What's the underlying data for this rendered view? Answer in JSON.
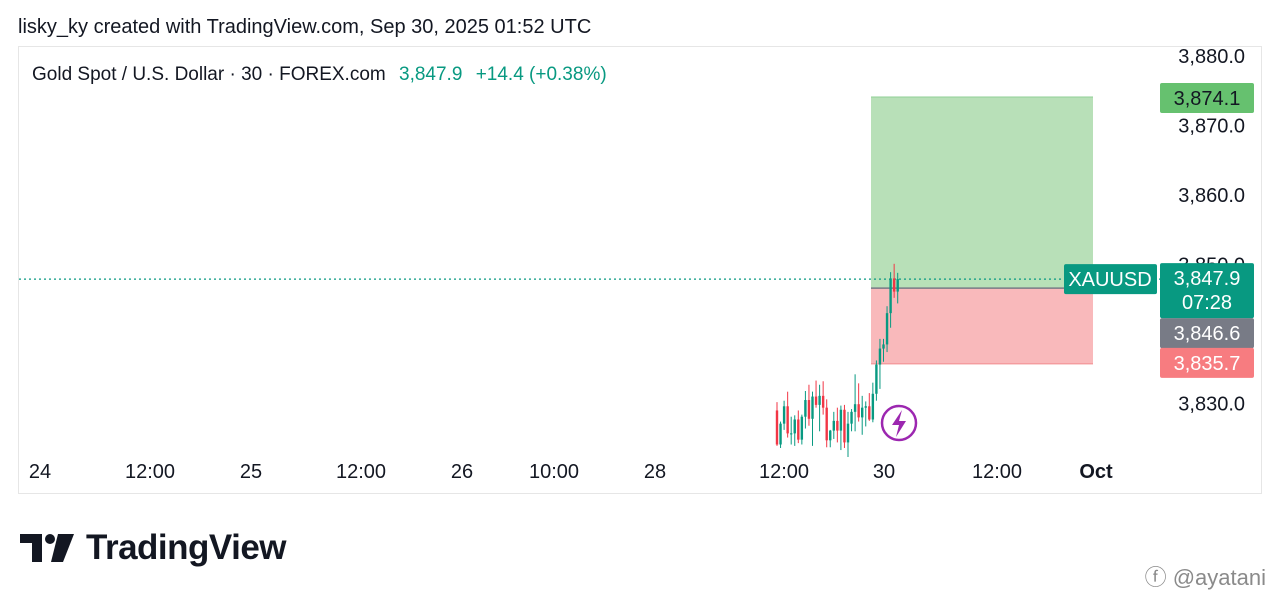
{
  "header": {
    "credit": "lisky_ky created with TradingView.com, Sep 30, 2025 01:52 UTC"
  },
  "legend": {
    "symbol_desc": "Gold Spot / U.S. Dollar · 30 · FOREX.com",
    "price": "3,847.9",
    "change": "+14.4 (+0.38%)"
  },
  "colors": {
    "up": "#089981",
    "down": "#f23645",
    "profit_zone": "#b8e0b8",
    "loss_zone": "#f9b9bb",
    "entry_label": "#787b86",
    "target_label": "#66c16f",
    "stop_label": "#f77c80",
    "lightning": "#9c27b0"
  },
  "logo": {
    "text": "TradingView"
  },
  "watermark": {
    "text": "@ayatani"
  },
  "chart_data": {
    "type": "candlestick",
    "symbol": "XAUUSD",
    "ylim": [
      3823,
      3882
    ],
    "y_ticks": [
      "3,880.0",
      "3,870.0",
      "3,860.0",
      "3,850.0",
      "3,830.0"
    ],
    "y_tick_values": [
      3880,
      3870,
      3860,
      3850,
      3830
    ],
    "x_ticks": [
      "24",
      "12:00",
      "25",
      "12:00",
      "26",
      "10:00",
      "28",
      "12:00",
      "30",
      "12:00",
      "Oct"
    ],
    "price_label": {
      "symbol": "XAUUSD",
      "price": "3,847.9",
      "countdown": "07:28",
      "value": 3847.9
    },
    "position": {
      "type": "long",
      "entry": 3846.6,
      "entry_label": "3,846.6",
      "target": 3874.1,
      "target_label": "3,874.1",
      "stop": 3835.7,
      "stop_label": "3,835.7"
    },
    "candles": [
      [
        3829.0,
        3830.2,
        3823.9,
        3824.1
      ],
      [
        3824.1,
        3827.4,
        3823.6,
        3827.1
      ],
      [
        3827.1,
        3830.4,
        3826.2,
        3829.6
      ],
      [
        3829.6,
        3831.7,
        3825.1,
        3825.7
      ],
      [
        3825.7,
        3828.1,
        3824.1,
        3825.7
      ],
      [
        3825.7,
        3828.3,
        3823.9,
        3827.7
      ],
      [
        3827.7,
        3829.0,
        3824.3,
        3824.8
      ],
      [
        3824.8,
        3828.4,
        3824.1,
        3828.1
      ],
      [
        3828.1,
        3831.8,
        3826.4,
        3830.5
      ],
      [
        3830.5,
        3832.7,
        3826.8,
        3827.8
      ],
      [
        3827.8,
        3831.7,
        3823.9,
        3831.0
      ],
      [
        3831.0,
        3833.3,
        3829.4,
        3829.8
      ],
      [
        3829.8,
        3832.7,
        3826.0,
        3831.1
      ],
      [
        3831.1,
        3833.2,
        3828.4,
        3829.4
      ],
      [
        3829.4,
        3830.6,
        3823.7,
        3824.7
      ],
      [
        3824.7,
        3826.2,
        3823.7,
        3826.1
      ],
      [
        3826.1,
        3828.8,
        3824.9,
        3827.5
      ],
      [
        3827.5,
        3829.4,
        3824.4,
        3826.1
      ],
      [
        3826.1,
        3829.7,
        3823.3,
        3829.1
      ],
      [
        3829.1,
        3829.8,
        3823.6,
        3824.4
      ],
      [
        3824.4,
        3828.8,
        3822.3,
        3827.1
      ],
      [
        3827.1,
        3829.2,
        3826.0,
        3828.8
      ],
      [
        3828.8,
        3834.2,
        3826.0,
        3829.9
      ],
      [
        3829.9,
        3832.9,
        3827.4,
        3828.0
      ],
      [
        3828.0,
        3831.1,
        3825.5,
        3829.4
      ],
      [
        3829.4,
        3830.3,
        3826.7,
        3829.6
      ],
      [
        3829.6,
        3831.5,
        3827.5,
        3827.7
      ],
      [
        3827.7,
        3833.0,
        3827.3,
        3831.4
      ],
      [
        3831.4,
        3836.2,
        3830.4,
        3835.6
      ],
      [
        3835.6,
        3839.3,
        3832.1,
        3837.9
      ],
      [
        3837.9,
        3839.3,
        3836.0,
        3838.5
      ],
      [
        3838.5,
        3844.0,
        3837.4,
        3843.0
      ],
      [
        3843.0,
        3848.9,
        3840.9,
        3848.0
      ],
      [
        3848.0,
        3850.1,
        3845.2,
        3846.1
      ],
      [
        3846.1,
        3848.8,
        3844.4,
        3847.9
      ]
    ]
  }
}
